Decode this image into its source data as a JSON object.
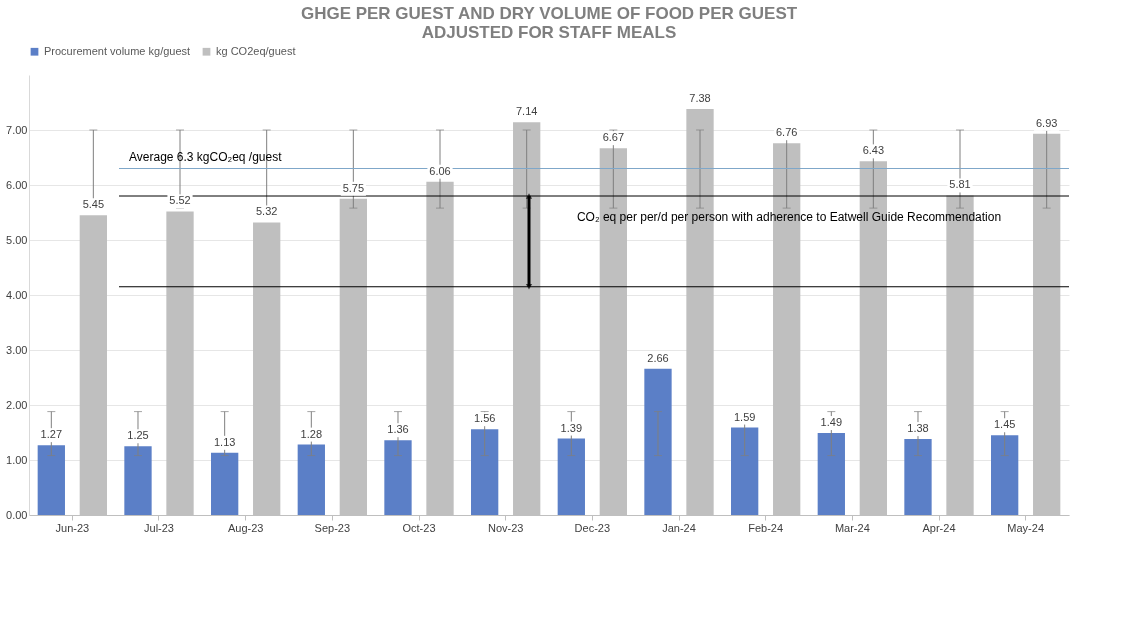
{
  "chart_data": {
    "type": "bar",
    "title": [
      "GHGE PER GUEST AND DRY VOLUME OF FOOD PER GUEST",
      "ADJUSTED FOR STAFF MEALS"
    ],
    "categories": [
      "Jun-23",
      "Jul-23",
      "Aug-23",
      "Sep-23",
      "Oct-23",
      "Nov-23",
      "Dec-23",
      "Jan-24",
      "Feb-24",
      "Mar-24",
      "Apr-24",
      "May-24"
    ],
    "series": [
      {
        "name": "Procurement volume kg/guest",
        "color": "#5b7fc7",
        "values": [
          1.27,
          1.25,
          1.13,
          1.28,
          1.36,
          1.56,
          1.39,
          2.66,
          1.59,
          1.49,
          1.38,
          1.45
        ],
        "errors": [
          [
            1.08,
            1.88
          ],
          [
            1.08,
            1.88
          ],
          [
            1.08,
            1.88
          ],
          [
            1.08,
            1.88
          ],
          [
            1.08,
            1.88
          ],
          [
            1.08,
            1.88
          ],
          [
            1.08,
            1.88
          ],
          [
            1.08,
            1.88
          ],
          [
            1.08,
            1.88
          ],
          [
            1.08,
            1.88
          ],
          [
            1.08,
            1.88
          ],
          [
            1.08,
            1.88
          ]
        ]
      },
      {
        "name": "kg CO2eq/guest",
        "color": "#bfbfbf",
        "values": [
          5.45,
          5.52,
          5.32,
          5.75,
          6.06,
          7.14,
          6.67,
          7.38,
          6.76,
          6.43,
          5.81,
          6.93
        ],
        "errors": [
          [
            5.58,
            7.0
          ],
          [
            5.58,
            7.0
          ],
          [
            5.58,
            7.0
          ],
          [
            5.58,
            7.0
          ],
          [
            5.58,
            7.0
          ],
          [
            5.58,
            7.0
          ],
          [
            5.58,
            7.0
          ],
          [
            5.58,
            7.0
          ],
          [
            5.58,
            7.0
          ],
          [
            5.58,
            7.0
          ],
          [
            5.58,
            7.0
          ],
          [
            5.58,
            7.0
          ]
        ]
      }
    ],
    "ylim": [
      0,
      8
    ],
    "yticks": [
      {
        "value": 0,
        "label": "0.00"
      },
      {
        "value": 1,
        "label": "1.00"
      },
      {
        "value": 2,
        "label": "2.00"
      },
      {
        "value": 3,
        "label": "3.00"
      },
      {
        "value": 4,
        "label": "4.00"
      },
      {
        "value": 5,
        "label": "5.00"
      },
      {
        "value": 6,
        "label": "6.00"
      },
      {
        "value": 7,
        "label": "7.00"
      }
    ],
    "ref_lines": [
      {
        "axis": "y",
        "value": 6.3,
        "label": "Average 6.3 kgCO₂eq /guest",
        "color": "#7fa7c9"
      },
      {
        "axis": "y",
        "value": 5.8,
        "color": "#000000"
      },
      {
        "axis": "y",
        "value": 4.15,
        "color": "#000000"
      }
    ],
    "annotations": [
      "CO₂ eq per per/d per person with adherence to Eatwell Guide Recommendation"
    ],
    "data_labels": true,
    "grid": "y",
    "legend": "top"
  }
}
